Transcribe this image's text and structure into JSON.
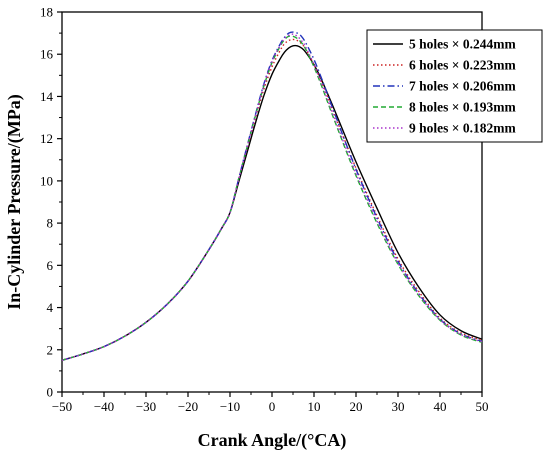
{
  "chart_data": {
    "type": "line",
    "title": "",
    "xlabel": "Crank Angle/(°CA)",
    "ylabel": "In-Cylinder Pressure/(MPa)",
    "xlim": [
      -50,
      50
    ],
    "ylim": [
      0,
      18
    ],
    "xticks": [
      -50,
      -40,
      -30,
      -20,
      -10,
      0,
      10,
      20,
      30,
      40,
      50
    ],
    "yticks": [
      0,
      2,
      4,
      6,
      8,
      10,
      12,
      14,
      16,
      18
    ],
    "xtick_labels": [
      "−50",
      "−40",
      "−30",
      "−20",
      "−10",
      "0",
      "10",
      "20",
      "30",
      "40",
      "50"
    ],
    "ytick_labels": [
      "0",
      "2",
      "4",
      "6",
      "8",
      "10",
      "12",
      "14",
      "16",
      "18"
    ],
    "grid": false,
    "legend_position": "top-right",
    "x": [
      -50,
      -45,
      -40,
      -35,
      -30,
      -25,
      -20,
      -15,
      -12,
      -10,
      -8,
      -6,
      -4,
      -2,
      0,
      2,
      3,
      4,
      5,
      6,
      7,
      8,
      10,
      12,
      15,
      20,
      25,
      30,
      35,
      40,
      45,
      50
    ],
    "series": [
      {
        "name": "5 holes × 0.244mm",
        "color": "#000000",
        "dash": "solid",
        "values": [
          1.5,
          1.8,
          2.15,
          2.65,
          3.3,
          4.15,
          5.25,
          6.75,
          7.75,
          8.5,
          9.9,
          11.3,
          12.7,
          14.0,
          15.05,
          15.8,
          16.1,
          16.3,
          16.4,
          16.4,
          16.3,
          16.1,
          15.5,
          14.7,
          13.3,
          10.9,
          8.7,
          6.6,
          4.95,
          3.65,
          2.9,
          2.5
        ]
      },
      {
        "name": "6 holes × 0.223mm",
        "color": "#cc2222",
        "dash": "dot",
        "values": [
          1.5,
          1.8,
          2.15,
          2.65,
          3.3,
          4.15,
          5.25,
          6.75,
          7.75,
          8.5,
          10.0,
          11.5,
          12.95,
          14.3,
          15.4,
          16.2,
          16.5,
          16.65,
          16.7,
          16.65,
          16.5,
          16.25,
          15.5,
          14.6,
          13.1,
          10.6,
          8.35,
          6.3,
          4.75,
          3.5,
          2.8,
          2.45
        ]
      },
      {
        "name": "7 holes × 0.206mm",
        "color": "#2233bb",
        "dash": "dashdot",
        "values": [
          1.5,
          1.8,
          2.15,
          2.65,
          3.3,
          4.15,
          5.25,
          6.75,
          7.75,
          8.5,
          10.05,
          11.6,
          13.1,
          14.55,
          15.7,
          16.5,
          16.8,
          17.0,
          17.05,
          17.0,
          16.85,
          16.55,
          15.75,
          14.75,
          13.15,
          10.55,
          8.25,
          6.2,
          4.65,
          3.45,
          2.75,
          2.4
        ]
      },
      {
        "name": "8 holes × 0.193mm",
        "color": "#22aa33",
        "dash": "dash",
        "values": [
          1.5,
          1.8,
          2.15,
          2.65,
          3.3,
          4.15,
          5.25,
          6.75,
          7.75,
          8.5,
          10.05,
          11.55,
          13.05,
          14.45,
          15.6,
          16.4,
          16.7,
          16.85,
          16.85,
          16.75,
          16.55,
          16.25,
          15.4,
          14.4,
          12.8,
          10.25,
          8.0,
          6.05,
          4.55,
          3.4,
          2.7,
          2.35
        ]
      },
      {
        "name": "9 holes × 0.182mm",
        "color": "#aa33cc",
        "dash": "dot",
        "values": [
          1.5,
          1.8,
          2.15,
          2.65,
          3.3,
          4.15,
          5.25,
          6.75,
          7.75,
          8.5,
          10.05,
          11.55,
          13.05,
          14.5,
          15.65,
          16.45,
          16.75,
          16.9,
          16.95,
          16.85,
          16.65,
          16.35,
          15.5,
          14.5,
          12.9,
          10.35,
          8.1,
          6.1,
          4.6,
          3.42,
          2.72,
          2.38
        ]
      }
    ]
  }
}
